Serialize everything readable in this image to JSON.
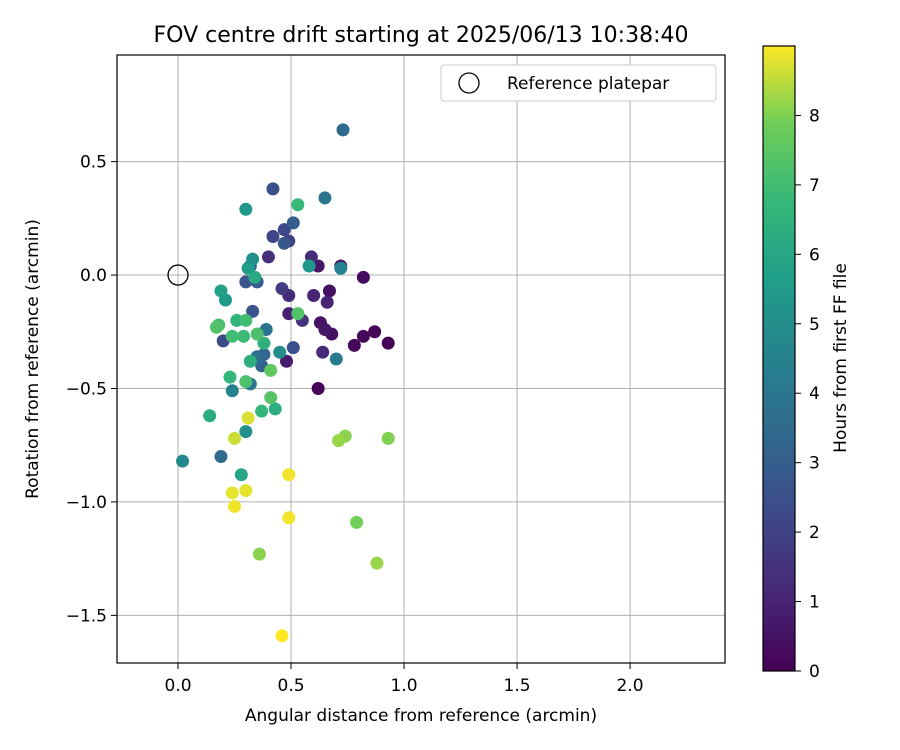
{
  "chart_data": {
    "type": "scatter",
    "title": "FOV centre drift starting at 2025/06/13 10:38:40",
    "xlabel": "Angular distance from reference (arcmin)",
    "ylabel": "Rotation from reference (arcmin)",
    "xlim": [
      -0.27,
      2.42
    ],
    "ylim": [
      -1.71,
      0.97
    ],
    "xticks": [
      0.0,
      0.5,
      1.0,
      1.5,
      2.0
    ],
    "xtick_labels": [
      "0.0",
      "0.5",
      "1.0",
      "1.5",
      "2.0"
    ],
    "yticks": [
      0.5,
      0.0,
      -0.5,
      -1.0,
      -1.5
    ],
    "ytick_labels": [
      "0.5",
      "0.0",
      "−0.5",
      "−1.0",
      "−1.5"
    ],
    "grid": true,
    "legend": {
      "position": "top-right",
      "label": "Reference platepar",
      "marker": "open-circle"
    },
    "reference_point": {
      "x": 0.0,
      "y": 0.0
    },
    "colorbar": {
      "label": "Hours from first FF file",
      "colormap": "viridis",
      "range": [
        0,
        9
      ],
      "ticks": [
        0,
        1,
        2,
        3,
        4,
        5,
        6,
        7,
        8
      ],
      "tick_labels": [
        "0",
        "1",
        "2",
        "3",
        "4",
        "5",
        "6",
        "7",
        "8"
      ]
    },
    "points": [
      {
        "x": 0.62,
        "y": -0.5,
        "c": 0.1
      },
      {
        "x": 0.93,
        "y": -0.3,
        "c": 0.1
      },
      {
        "x": 0.87,
        "y": -0.25,
        "c": 0.2
      },
      {
        "x": 0.82,
        "y": -0.27,
        "c": 0.2
      },
      {
        "x": 0.78,
        "y": -0.31,
        "c": 0.2
      },
      {
        "x": 0.82,
        "y": -0.01,
        "c": 0.3
      },
      {
        "x": 0.67,
        "y": -0.07,
        "c": 0.4
      },
      {
        "x": 0.68,
        "y": -0.26,
        "c": 0.4
      },
      {
        "x": 0.63,
        "y": -0.21,
        "c": 0.5
      },
      {
        "x": 0.65,
        "y": -0.24,
        "c": 0.6
      },
      {
        "x": 0.62,
        "y": 0.04,
        "c": 0.6
      },
      {
        "x": 0.72,
        "y": 0.04,
        "c": 0.7
      },
      {
        "x": 0.48,
        "y": -0.38,
        "c": 0.8
      },
      {
        "x": 0.49,
        "y": -0.17,
        "c": 0.9
      },
      {
        "x": 0.6,
        "y": -0.09,
        "c": 1.0
      },
      {
        "x": 0.66,
        "y": -0.12,
        "c": 1.0
      },
      {
        "x": 0.64,
        "y": -0.34,
        "c": 1.2
      },
      {
        "x": 0.49,
        "y": -0.09,
        "c": 1.3
      },
      {
        "x": 0.59,
        "y": 0.08,
        "c": 1.3
      },
      {
        "x": 0.4,
        "y": 0.08,
        "c": 1.4
      },
      {
        "x": 0.55,
        "y": -0.2,
        "c": 1.5
      },
      {
        "x": 0.46,
        "y": -0.06,
        "c": 1.8
      },
      {
        "x": 0.49,
        "y": 0.15,
        "c": 2.0
      },
      {
        "x": 0.42,
        "y": 0.17,
        "c": 2.1
      },
      {
        "x": 0.47,
        "y": 0.2,
        "c": 2.2
      },
      {
        "x": 0.2,
        "y": -0.29,
        "c": 2.3
      },
      {
        "x": 0.51,
        "y": -0.32,
        "c": 2.5
      },
      {
        "x": 0.42,
        "y": 0.38,
        "c": 2.5
      },
      {
        "x": 0.33,
        "y": -0.16,
        "c": 2.6
      },
      {
        "x": 0.3,
        "y": -0.03,
        "c": 2.7
      },
      {
        "x": 0.47,
        "y": 0.14,
        "c": 2.8
      },
      {
        "x": 0.35,
        "y": -0.03,
        "c": 2.9
      },
      {
        "x": 0.51,
        "y": 0.23,
        "c": 3.0
      },
      {
        "x": 0.32,
        "y": 0.04,
        "c": 3.1
      },
      {
        "x": 0.37,
        "y": -0.4,
        "c": 3.2
      },
      {
        "x": 0.38,
        "y": -0.35,
        "c": 3.3
      },
      {
        "x": 0.19,
        "y": -0.8,
        "c": 3.5
      },
      {
        "x": 0.73,
        "y": 0.64,
        "c": 3.5
      },
      {
        "x": 0.35,
        "y": -0.36,
        "c": 3.6
      },
      {
        "x": 0.39,
        "y": -0.24,
        "c": 3.8
      },
      {
        "x": 0.32,
        "y": -0.48,
        "c": 4.0
      },
      {
        "x": 0.65,
        "y": 0.34,
        "c": 4.0
      },
      {
        "x": 0.7,
        "y": -0.37,
        "c": 4.2
      },
      {
        "x": 0.24,
        "y": -0.51,
        "c": 4.4
      },
      {
        "x": 0.72,
        "y": 0.03,
        "c": 4.5
      },
      {
        "x": 0.02,
        "y": -0.82,
        "c": 4.8
      },
      {
        "x": 0.45,
        "y": -0.34,
        "c": 5.0
      },
      {
        "x": 0.3,
        "y": -0.69,
        "c": 5.1
      },
      {
        "x": 0.33,
        "y": 0.07,
        "c": 5.2
      },
      {
        "x": 0.58,
        "y": 0.04,
        "c": 5.3
      },
      {
        "x": 0.3,
        "y": 0.29,
        "c": 5.4
      },
      {
        "x": 0.21,
        "y": -0.11,
        "c": 5.5
      },
      {
        "x": 0.31,
        "y": 0.03,
        "c": 5.6
      },
      {
        "x": 0.19,
        "y": -0.07,
        "c": 5.8
      },
      {
        "x": 0.28,
        "y": -0.88,
        "c": 6.0
      },
      {
        "x": 0.34,
        "y": -0.01,
        "c": 6.1
      },
      {
        "x": 0.14,
        "y": -0.62,
        "c": 6.2
      },
      {
        "x": 0.43,
        "y": -0.59,
        "c": 6.3
      },
      {
        "x": 0.32,
        "y": -0.38,
        "c": 6.4
      },
      {
        "x": 0.38,
        "y": -0.3,
        "c": 6.5
      },
      {
        "x": 0.26,
        "y": -0.2,
        "c": 6.6
      },
      {
        "x": 0.37,
        "y": -0.6,
        "c": 6.7
      },
      {
        "x": 0.23,
        "y": -0.45,
        "c": 6.7
      },
      {
        "x": 0.53,
        "y": 0.31,
        "c": 6.8
      },
      {
        "x": 0.29,
        "y": -0.27,
        "c": 6.9
      },
      {
        "x": 0.24,
        "y": -0.27,
        "c": 7.0
      },
      {
        "x": 0.3,
        "y": -0.2,
        "c": 7.0
      },
      {
        "x": 0.18,
        "y": -0.22,
        "c": 7.1
      },
      {
        "x": 0.35,
        "y": -0.26,
        "c": 7.2
      },
      {
        "x": 0.3,
        "y": -0.47,
        "c": 7.2
      },
      {
        "x": 0.53,
        "y": -0.17,
        "c": 7.3
      },
      {
        "x": 0.17,
        "y": -0.23,
        "c": 7.3
      },
      {
        "x": 0.41,
        "y": -0.54,
        "c": 7.4
      },
      {
        "x": 0.41,
        "y": -0.42,
        "c": 7.6
      },
      {
        "x": 0.79,
        "y": -1.09,
        "c": 7.9
      },
      {
        "x": 0.93,
        "y": -0.72,
        "c": 8.0
      },
      {
        "x": 0.74,
        "y": -0.71,
        "c": 8.1
      },
      {
        "x": 0.36,
        "y": -1.23,
        "c": 8.1
      },
      {
        "x": 0.71,
        "y": -0.73,
        "c": 8.2
      },
      {
        "x": 0.88,
        "y": -1.27,
        "c": 8.2
      },
      {
        "x": 0.25,
        "y": -0.72,
        "c": 8.6
      },
      {
        "x": 0.31,
        "y": -0.63,
        "c": 8.7
      },
      {
        "x": 0.24,
        "y": -0.96,
        "c": 8.8
      },
      {
        "x": 0.3,
        "y": -0.95,
        "c": 8.8
      },
      {
        "x": 0.25,
        "y": -1.02,
        "c": 8.9
      },
      {
        "x": 0.49,
        "y": -0.88,
        "c": 8.9
      },
      {
        "x": 0.49,
        "y": -1.07,
        "c": 8.9
      },
      {
        "x": 0.46,
        "y": -1.59,
        "c": 9.0
      }
    ]
  }
}
